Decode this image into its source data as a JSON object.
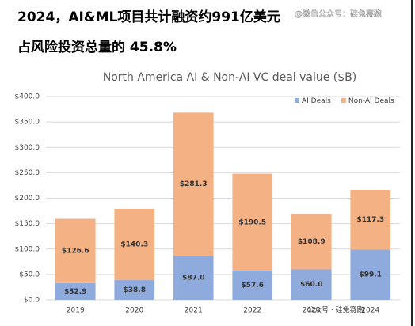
{
  "header": {
    "title_line1": "2024，AI&ML项目共计融资约991亿美元",
    "title_line2": "占风险投资总量的 45.8%",
    "watermark_top": "@微信公众号：硅兔赛跑",
    "watermark_bottom": "公众号 · 硅兔赛跑"
  },
  "chart_data": {
    "type": "stacked_bar",
    "title": "North America AI & Non-AI  VC deal value ($B)",
    "categories": [
      "2019",
      "2020",
      "2021",
      "2022",
      "2023",
      "2024"
    ],
    "series": [
      {
        "name": "AI Deals",
        "color": "#8faadc",
        "values": [
          32.9,
          38.8,
          87.0,
          57.6,
          60.0,
          99.1
        ],
        "value_labels": [
          "$32.9",
          "$38.8",
          "$87.0",
          "$57.6",
          "$60.0",
          "$99.1"
        ]
      },
      {
        "name": "Non-AI Deals",
        "color": "#f4b183",
        "values": [
          126.6,
          140.3,
          281.3,
          190.5,
          108.9,
          117.3
        ],
        "value_labels": [
          "$126.6",
          "$140.3",
          "$281.3",
          "$190.5",
          "$108.9",
          "$117.3"
        ]
      }
    ],
    "ylim": [
      0,
      400
    ],
    "yticks": [
      {
        "value": 0,
        "label": "$0.0"
      },
      {
        "value": 50,
        "label": "$50.0"
      },
      {
        "value": 100,
        "label": "$100.0"
      },
      {
        "value": 150,
        "label": "$150.0"
      },
      {
        "value": 200,
        "label": "$200.0"
      },
      {
        "value": 250,
        "label": "$250.0"
      },
      {
        "value": 300,
        "label": "$300.0"
      },
      {
        "value": 350,
        "label": "$350.0"
      },
      {
        "value": 400,
        "label": "$400.0"
      }
    ],
    "grid": true,
    "legend": "top-right"
  }
}
